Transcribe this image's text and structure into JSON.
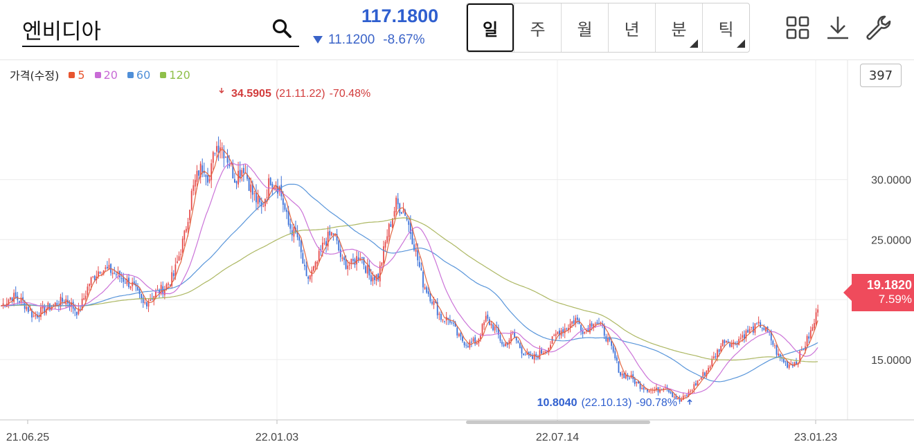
{
  "search": {
    "query": "엔비디아"
  },
  "quote": {
    "price": "117.1800",
    "change": "11.1200",
    "change_pct": "-8.67%",
    "color": "#3a63c8"
  },
  "period_tabs": [
    {
      "label": "일",
      "active": true,
      "has_menu": false
    },
    {
      "label": "주",
      "active": false,
      "has_menu": false
    },
    {
      "label": "월",
      "active": false,
      "has_menu": false
    },
    {
      "label": "년",
      "active": false,
      "has_menu": false
    },
    {
      "label": "분",
      "active": false,
      "has_menu": true
    },
    {
      "label": "틱",
      "active": false,
      "has_menu": true
    }
  ],
  "toolbar_icons": [
    "grid-icon",
    "download-icon",
    "wrench-icon"
  ],
  "legend": {
    "price_label": "가격(수정)",
    "ma": [
      {
        "label": "5",
        "color": "#e8552f"
      },
      {
        "label": "20",
        "color": "#c86bd6"
      },
      {
        "label": "60",
        "color": "#4f8fd8"
      },
      {
        "label": "120",
        "color": "#8fbf4a"
      }
    ]
  },
  "count_badge": "397",
  "last_price": {
    "value": "19.1820",
    "pct": "7.59%",
    "color": "#ef4b5c"
  },
  "chart_data": {
    "type": "candlestick",
    "y_ticks": [
      {
        "value": 30,
        "label": "30.0000"
      },
      {
        "value": 25,
        "label": "25.0000"
      },
      {
        "value": 15,
        "label": "15.0000"
      }
    ],
    "ylim": [
      9.98,
      39.95
    ],
    "grid": true,
    "x_ticks": [
      "21.06.25",
      "22.01.03",
      "22.07.14",
      "23.01.23"
    ],
    "high_annotation": {
      "value": "34.5905",
      "date": "(21.11.22)",
      "pct": "-70.48%",
      "color": "#d23c3c"
    },
    "low_annotation": {
      "value": "10.8040",
      "date": "(22.10.13)",
      "pct": "-90.78%",
      "color": "#2f5fcf"
    },
    "candle_up_color": "#e64a4a",
    "candle_down_color": "#3a70d8",
    "close_series": [
      {
        "t": 0,
        "close": 19.5
      },
      {
        "t": 6,
        "close": 20.3
      },
      {
        "t": 12,
        "close": 19.8
      },
      {
        "t": 18,
        "close": 18.6
      },
      {
        "t": 24,
        "close": 19.2
      },
      {
        "t": 30,
        "close": 19.6
      },
      {
        "t": 36,
        "close": 20.0
      },
      {
        "t": 43,
        "close": 18.9
      },
      {
        "t": 49,
        "close": 21.4
      },
      {
        "t": 55,
        "close": 22.6
      },
      {
        "t": 61,
        "close": 22.4
      },
      {
        "t": 67,
        "close": 21.8
      },
      {
        "t": 73,
        "close": 21.2
      },
      {
        "t": 79,
        "close": 19.6
      },
      {
        "t": 85,
        "close": 20.4
      },
      {
        "t": 91,
        "close": 21.0
      },
      {
        "t": 96,
        "close": 22.0
      },
      {
        "t": 102,
        "close": 25.3
      },
      {
        "t": 106,
        "close": 28.8
      },
      {
        "t": 110,
        "close": 30.7
      },
      {
        "t": 113,
        "close": 31.2
      },
      {
        "t": 116,
        "close": 30.0
      },
      {
        "t": 119,
        "close": 32.7
      },
      {
        "t": 122,
        "close": 33.0
      },
      {
        "t": 126,
        "close": 31.8
      },
      {
        "t": 130,
        "close": 30.2
      },
      {
        "t": 135,
        "close": 31.1
      },
      {
        "t": 140,
        "close": 28.8
      },
      {
        "t": 145,
        "close": 27.6
      },
      {
        "t": 150,
        "close": 30.1
      },
      {
        "t": 155,
        "close": 29.3
      },
      {
        "t": 160,
        "close": 26.2
      },
      {
        "t": 165,
        "close": 25.2
      },
      {
        "t": 170,
        "close": 21.6
      },
      {
        "t": 175,
        "close": 22.7
      },
      {
        "t": 180,
        "close": 24.8
      },
      {
        "t": 185,
        "close": 25.6
      },
      {
        "t": 190,
        "close": 23.1
      },
      {
        "t": 195,
        "close": 22.9
      },
      {
        "t": 200,
        "close": 23.8
      },
      {
        "t": 205,
        "close": 22.0
      },
      {
        "t": 210,
        "close": 21.9
      },
      {
        "t": 215,
        "close": 25.4
      },
      {
        "t": 220,
        "close": 28.0
      },
      {
        "t": 225,
        "close": 27.3
      },
      {
        "t": 230,
        "close": 24.6
      },
      {
        "t": 235,
        "close": 21.4
      },
      {
        "t": 240,
        "close": 20.0
      },
      {
        "t": 245,
        "close": 18.5
      },
      {
        "t": 250,
        "close": 18.3
      },
      {
        "t": 255,
        "close": 16.8
      },
      {
        "t": 260,
        "close": 16.3
      },
      {
        "t": 265,
        "close": 16.5
      },
      {
        "t": 270,
        "close": 18.4
      },
      {
        "t": 275,
        "close": 17.6
      },
      {
        "t": 280,
        "close": 16.1
      },
      {
        "t": 285,
        "close": 17.1
      },
      {
        "t": 290,
        "close": 15.8
      },
      {
        "t": 295,
        "close": 15.0
      },
      {
        "t": 300,
        "close": 15.5
      },
      {
        "t": 305,
        "close": 16.1
      },
      {
        "t": 310,
        "close": 17.3
      },
      {
        "t": 315,
        "close": 17.7
      },
      {
        "t": 320,
        "close": 18.4
      },
      {
        "t": 325,
        "close": 17.3
      },
      {
        "t": 330,
        "close": 18.3
      },
      {
        "t": 335,
        "close": 17.6
      },
      {
        "t": 340,
        "close": 15.9
      },
      {
        "t": 345,
        "close": 13.8
      },
      {
        "t": 350,
        "close": 13.6
      },
      {
        "t": 355,
        "close": 12.9
      },
      {
        "t": 360,
        "close": 12.6
      },
      {
        "t": 365,
        "close": 12.4
      },
      {
        "t": 370,
        "close": 12.9
      },
      {
        "t": 374,
        "close": 12.1
      },
      {
        "t": 378,
        "close": 11.5
      },
      {
        "t": 383,
        "close": 12.2
      },
      {
        "t": 388,
        "close": 13.2
      },
      {
        "t": 393,
        "close": 14.1
      },
      {
        "t": 398,
        "close": 15.4
      },
      {
        "t": 403,
        "close": 16.7
      },
      {
        "t": 408,
        "close": 16.3
      },
      {
        "t": 413,
        "close": 17.0
      },
      {
        "t": 418,
        "close": 17.5
      },
      {
        "t": 423,
        "close": 17.9
      },
      {
        "t": 428,
        "close": 17.0
      },
      {
        "t": 433,
        "close": 15.3
      },
      {
        "t": 438,
        "close": 14.6
      },
      {
        "t": 443,
        "close": 14.8
      },
      {
        "t": 448,
        "close": 16.3
      },
      {
        "t": 452,
        "close": 17.6
      },
      {
        "t": 455,
        "close": 19.18
      }
    ]
  }
}
